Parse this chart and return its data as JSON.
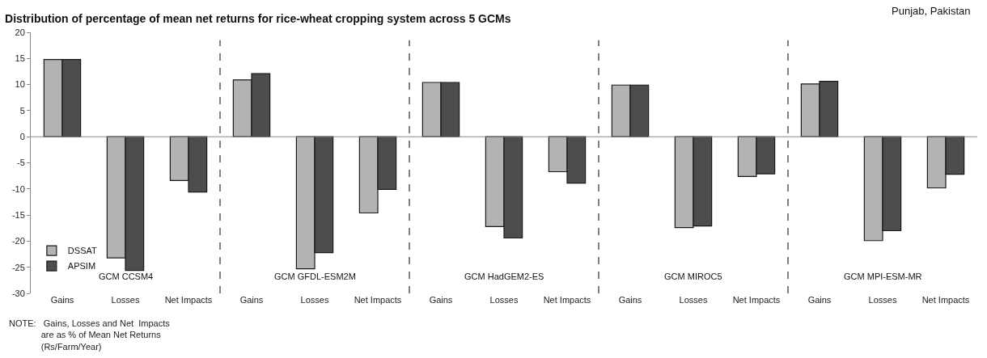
{
  "chart_data": {
    "type": "bar",
    "title": "Distribution of percentage of mean net returns for rice-wheat cropping system across 5 GCMs",
    "subtitle": "Punjab, Pakistan",
    "categories": [
      "Gains",
      "Losses",
      "Net Impacts",
      "Gains",
      "Losses",
      "Net Impacts",
      "Gains",
      "Losses",
      "Net Impacts",
      "Gains",
      "Losses",
      "Net Impacts",
      "Gains",
      "Losses",
      "Net Impacts"
    ],
    "series": [
      {
        "name": "DSSAT",
        "color": "#b3b3b3",
        "values": [
          14.8,
          -23.2,
          -8.4,
          10.9,
          -25.3,
          -14.6,
          10.4,
          -17.2,
          -6.7,
          9.9,
          -17.4,
          -7.6,
          10.1,
          -19.9,
          -9.8
        ]
      },
      {
        "name": "APSIM",
        "color": "#4d4d4d",
        "values": [
          14.8,
          -25.6,
          -10.6,
          12.1,
          -22.2,
          -10.1,
          10.4,
          -19.4,
          -8.9,
          9.9,
          -17.1,
          -7.1,
          10.6,
          -18.0,
          -7.2
        ]
      }
    ],
    "ylim": [
      -30,
      20
    ],
    "yticks": [
      -30,
      -25,
      -20,
      -15,
      -10,
      -5,
      0,
      5,
      10,
      15,
      20
    ],
    "annotations": [
      "GCM CCSM4",
      "GCM GFDL-ESM2M",
      "GCM HadGEM2-ES",
      "GCM MIROC5",
      "GCM MPI-ESM-MR",
      "NOTE:   Gains, Losses and Net  Impacts\n             are as % of Mean Net Returns\n             (Rs/Farm/Year)"
    ],
    "legend": "bottom left"
  }
}
